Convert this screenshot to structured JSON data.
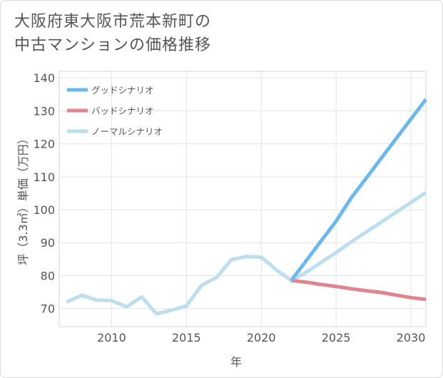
{
  "title": {
    "line1": "大阪府東大阪市荒本新町の",
    "line2": "中古マンションの価格推移"
  },
  "chart_data": {
    "type": "line",
    "title": "大阪府東大阪市荒本新町の中古マンションの価格推移",
    "xlabel": "年",
    "ylabel": "坪（3.3㎡）単価（万円）",
    "xlim": [
      2006.5,
      2031
    ],
    "ylim": [
      64.5,
      142
    ],
    "xticks": [
      2010,
      2015,
      2020,
      2025,
      2030
    ],
    "yticks": [
      70,
      80,
      90,
      100,
      110,
      120,
      130,
      140
    ],
    "grid": true,
    "legend_position": "top-left",
    "series": [
      {
        "name": "グッドシナリオ",
        "color": "#6bb9ec",
        "x": [
          2022,
          2023,
          2024,
          2025,
          2026,
          2027,
          2028,
          2029,
          2030,
          2031
        ],
        "y": [
          78.5,
          84.5,
          90.5,
          96.5,
          103.5,
          109.5,
          115.5,
          121.5,
          127.5,
          133.5
        ]
      },
      {
        "name": "バッドシナリオ",
        "color": "#e0848e",
        "x": [
          2022,
          2023,
          2024,
          2025,
          2026,
          2027,
          2028,
          2029,
          2030,
          2031
        ],
        "y": [
          78.5,
          78.0,
          77.3,
          76.7,
          76.0,
          75.4,
          74.9,
          74.1,
          73.3,
          72.8
        ]
      },
      {
        "name": "ノーマルシナリオ",
        "color": "#bcdeef",
        "x": [
          2007,
          2008,
          2009,
          2010,
          2011,
          2012,
          2013,
          2014,
          2015,
          2016,
          2017,
          2018,
          2019,
          2020,
          2021,
          2022,
          2023,
          2024,
          2025,
          2026,
          2027,
          2028,
          2029,
          2030,
          2031
        ],
        "y": [
          72.0,
          74.0,
          72.6,
          72.4,
          70.5,
          73.5,
          68.4,
          69.5,
          70.8,
          77.0,
          79.4,
          84.8,
          85.8,
          85.6,
          81.8,
          78.5,
          81.0,
          84.0,
          87.0,
          90.2,
          93.2,
          96.2,
          99.2,
          102.2,
          105.2
        ]
      }
    ]
  }
}
